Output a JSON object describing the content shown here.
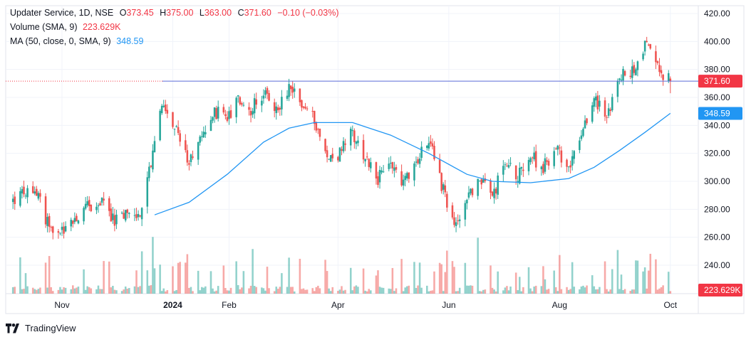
{
  "legend": {
    "symbol": "Updater Service, 1D, NSE",
    "o_label": "O",
    "o_value": "373.45",
    "h_label": "H",
    "h_value": "375.00",
    "l_label": "L",
    "l_value": "363.00",
    "c_label": "C",
    "c_value": "371.60",
    "change": "−0.10 (−0.03%)",
    "volume_label": "Volume (SMA, 9)",
    "volume_value": "223.629K",
    "ma_label": "MA (50, close, 0, SMA, 9)",
    "ma_value": "348.59"
  },
  "branding": {
    "text": "TradingView",
    "icon": "tradingview-logo-icon"
  },
  "colors": {
    "up": "#26a69a",
    "down": "#ef5350",
    "ma": "#2196f3",
    "price_line": "#5b6bd6",
    "price_tag": "#f23645"
  },
  "chart_data": {
    "type": "candlestick",
    "price_axis": {
      "min": 230,
      "max": 420,
      "ticks": [
        "420.00",
        "400.00",
        "380.00",
        "360.00",
        "340.00",
        "320.00",
        "300.00",
        "280.00",
        "260.00",
        "240.00"
      ]
    },
    "time_axis": {
      "labels": [
        "Nov",
        "2024",
        "Feb",
        "Apr",
        "Jun",
        "Aug",
        "Oct"
      ]
    },
    "last_price": {
      "value": 371.6,
      "label": "371.60"
    },
    "ma_last": {
      "value": 348.59,
      "label": "348.59"
    },
    "volume_last": {
      "label": "223.629K"
    },
    "close_path": [
      [
        "2023-10-05",
        286
      ],
      [
        "2023-10-12",
        293
      ],
      [
        "2023-10-19",
        290
      ],
      [
        "2023-10-26",
        262
      ],
      [
        "2023-11-02",
        265
      ],
      [
        "2023-11-09",
        275
      ],
      [
        "2023-11-16",
        282
      ],
      [
        "2023-11-23",
        284
      ],
      [
        "2023-11-30",
        272
      ],
      [
        "2023-12-07",
        276
      ],
      [
        "2023-12-14",
        277
      ],
      [
        "2023-12-18",
        300
      ],
      [
        "2023-12-22",
        330
      ],
      [
        "2023-12-27",
        358
      ],
      [
        "2024-01-03",
        335
      ],
      [
        "2024-01-10",
        312
      ],
      [
        "2024-01-17",
        330
      ],
      [
        "2024-01-24",
        350
      ],
      [
        "2024-01-31",
        345
      ],
      [
        "2024-02-06",
        358
      ],
      [
        "2024-02-13",
        352
      ],
      [
        "2024-02-20",
        362
      ],
      [
        "2024-02-27",
        350
      ],
      [
        "2024-03-05",
        368
      ],
      [
        "2024-03-12",
        355
      ],
      [
        "2024-03-19",
        345
      ],
      [
        "2024-03-26",
        315
      ],
      [
        "2024-04-02",
        320
      ],
      [
        "2024-04-09",
        335
      ],
      [
        "2024-04-16",
        318
      ],
      [
        "2024-04-23",
        302
      ],
      [
        "2024-04-30",
        312
      ],
      [
        "2024-05-07",
        300
      ],
      [
        "2024-05-14",
        315
      ],
      [
        "2024-05-21",
        330
      ],
      [
        "2024-05-28",
        298
      ],
      [
        "2024-06-04",
        265
      ],
      [
        "2024-06-11",
        290
      ],
      [
        "2024-06-18",
        300
      ],
      [
        "2024-06-25",
        290
      ],
      [
        "2024-07-02",
        312
      ],
      [
        "2024-07-09",
        305
      ],
      [
        "2024-07-16",
        318
      ],
      [
        "2024-07-23",
        310
      ],
      [
        "2024-07-30",
        322
      ],
      [
        "2024-08-06",
        312
      ],
      [
        "2024-08-13",
        330
      ],
      [
        "2024-08-20",
        360
      ],
      [
        "2024-08-27",
        345
      ],
      [
        "2024-09-03",
        375
      ],
      [
        "2024-09-10",
        378
      ],
      [
        "2024-09-17",
        398
      ],
      [
        "2024-09-24",
        380
      ],
      [
        "2024-10-01",
        371.6
      ]
    ],
    "ma_path": [
      [
        "2023-12-22",
        276
      ],
      [
        "2024-01-10",
        285
      ],
      [
        "2024-01-31",
        305
      ],
      [
        "2024-02-20",
        328
      ],
      [
        "2024-03-05",
        338
      ],
      [
        "2024-03-19",
        342
      ],
      [
        "2024-04-09",
        342
      ],
      [
        "2024-04-30",
        333
      ],
      [
        "2024-05-21",
        320
      ],
      [
        "2024-06-11",
        305
      ],
      [
        "2024-06-25",
        300
      ],
      [
        "2024-07-16",
        299
      ],
      [
        "2024-08-06",
        302
      ],
      [
        "2024-08-20",
        310
      ],
      [
        "2024-09-03",
        322
      ],
      [
        "2024-09-17",
        335
      ],
      [
        "2024-10-01",
        348.59
      ]
    ]
  }
}
